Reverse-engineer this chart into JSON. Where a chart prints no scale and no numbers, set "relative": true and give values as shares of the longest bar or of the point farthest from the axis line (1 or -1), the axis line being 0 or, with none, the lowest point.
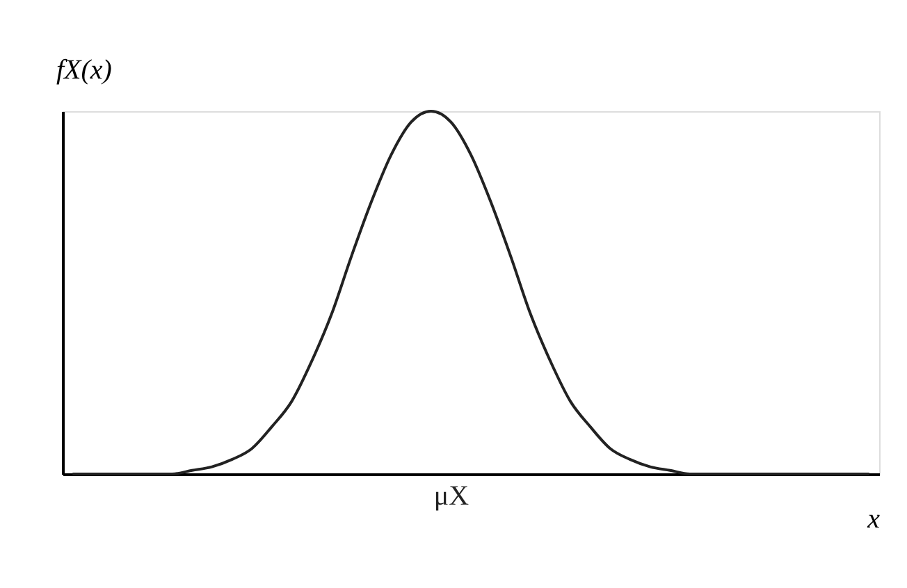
{
  "chart_data": {
    "type": "line",
    "relative": true,
    "ylabel": "fX(x)",
    "xlabel": "x",
    "categories": [
      null,
      null,
      null,
      null,
      null,
      null,
      null,
      null,
      null,
      null,
      null,
      null,
      null,
      null,
      null,
      null,
      null,
      null,
      null,
      null,
      null,
      null,
      null,
      null,
      null,
      null,
      null,
      null,
      null,
      null,
      null,
      null,
      null,
      null,
      null,
      null,
      null,
      null,
      null,
      null,
      null
    ],
    "series": [
      {
        "color": "#222222",
        "values": [
          0,
          0,
          0,
          0,
          0,
          0,
          0.01,
          0.02,
          0.04,
          0.07,
          0.13,
          0.2,
          0.31,
          0.44,
          0.6,
          0.75,
          0.88,
          0.97,
          1,
          0.97,
          0.88,
          0.75,
          0.6,
          0.44,
          0.31,
          0.2,
          0.13,
          0.07,
          0.04,
          0.02,
          0.01,
          0,
          0,
          0,
          0,
          0,
          0,
          0,
          0,
          0,
          0
        ]
      }
    ],
    "annotations": [
      "μX"
    ],
    "grid": false,
    "marker": "none",
    "line_style": "solid"
  }
}
